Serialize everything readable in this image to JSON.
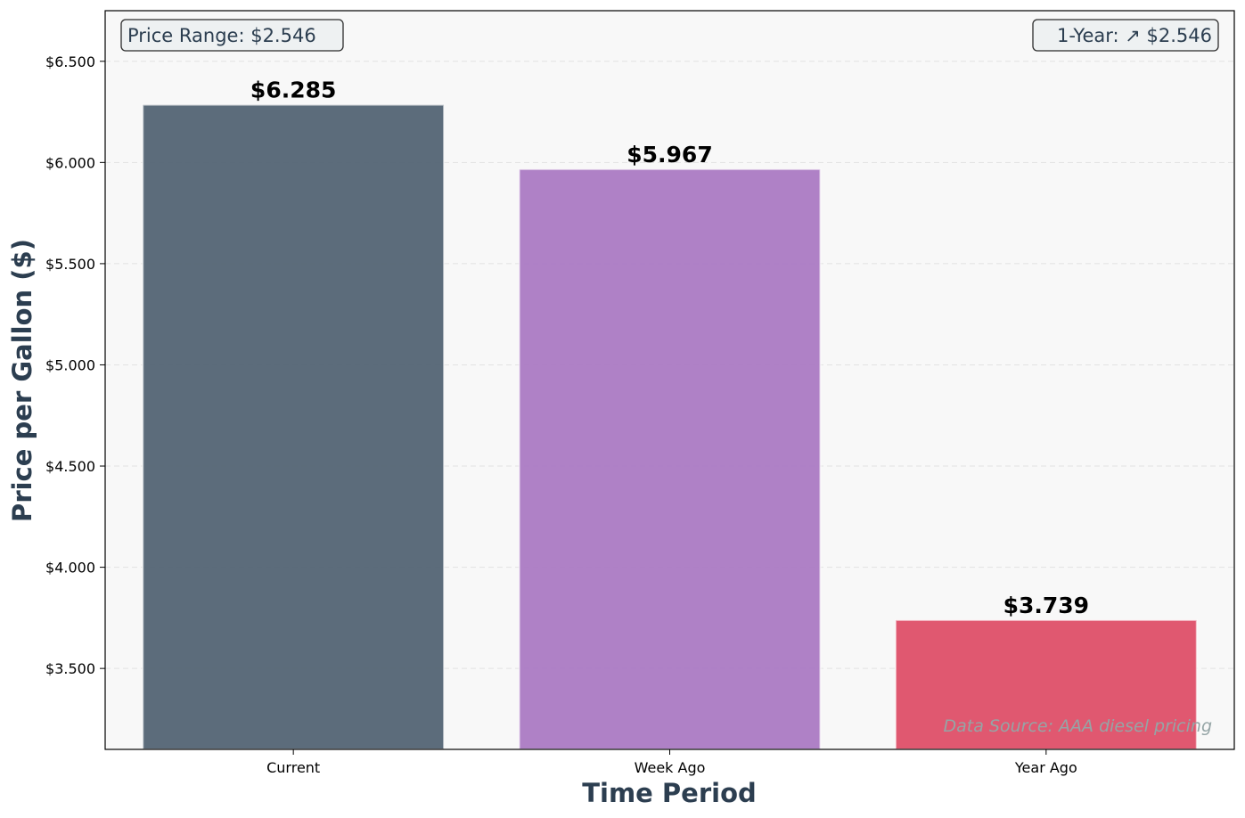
{
  "chart_data": {
    "type": "bar",
    "title": "",
    "xlabel": "Time Period",
    "ylabel": "Price per Gallon ($)",
    "categories": [
      "Current",
      "Week Ago",
      "Year Ago"
    ],
    "values": [
      6.285,
      5.967,
      3.739
    ],
    "value_labels": [
      "$6.285",
      "$5.967",
      "$3.739"
    ],
    "colors": [
      "#536474",
      "#ab7ac3",
      "#de4f68"
    ],
    "ylim": [
      3.1,
      6.75
    ],
    "yticks": [
      3.5,
      4.0,
      4.5,
      5.0,
      5.5,
      6.0,
      6.5
    ],
    "ytick_labels": [
      "$3.500",
      "$4.000",
      "$4.500",
      "$5.000",
      "$5.500",
      "$6.000",
      "$6.500"
    ],
    "grid": true,
    "annotations": {
      "range_box": "Price Range: $2.546",
      "change_box": "1-Year: ↗ $2.546",
      "source": "Data Source: AAA diesel pricing"
    }
  }
}
